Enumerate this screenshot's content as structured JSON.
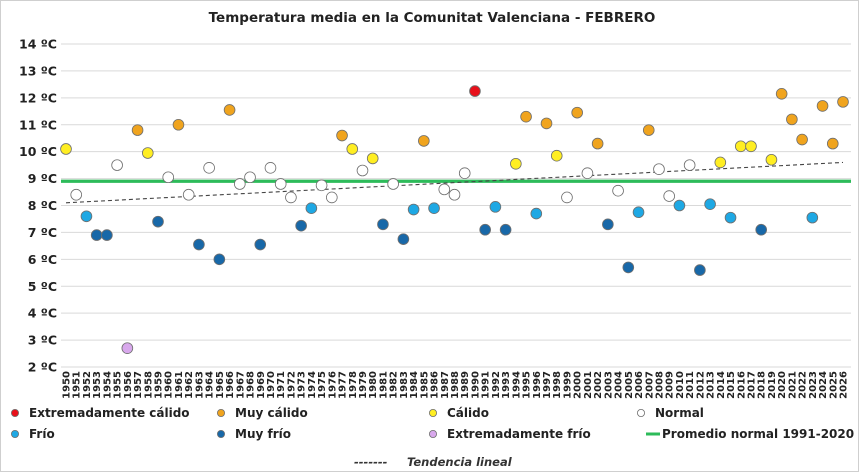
{
  "chart_data": {
    "type": "scatter",
    "title": "Temperatura media en la Comunitat Valenciana - FEBRERO",
    "y_unit": "ºC",
    "ylim": [
      2,
      14
    ],
    "y_ticks": [
      2,
      3,
      4,
      5,
      6,
      7,
      8,
      9,
      10,
      11,
      12,
      13,
      14
    ],
    "x_ticks": [
      1950,
      1951,
      1952,
      1953,
      1954,
      1955,
      1956,
      1957,
      1958,
      1959,
      1960,
      1961,
      1962,
      1963,
      1964,
      1965,
      1966,
      1967,
      1968,
      1969,
      1970,
      1971,
      1972,
      1973,
      1974,
      1975,
      1976,
      1977,
      1978,
      1979,
      1980,
      1981,
      1982,
      1983,
      1984,
      1985,
      1986,
      1987,
      1988,
      1989,
      1990,
      1991,
      1992,
      1993,
      1994,
      1995,
      1996,
      1997,
      1998,
      1999,
      2000,
      2001,
      2002,
      2003,
      2004,
      2005,
      2006,
      2007,
      2008,
      2009,
      2010,
      2011,
      2012,
      2013,
      2014,
      2015,
      2016,
      2017,
      2018,
      2019,
      2020,
      2021,
      2022,
      2023,
      2024,
      2025,
      2026
    ],
    "grid": "horizontal",
    "categories": {
      "ext_calido": {
        "label": "Extremadamente cálido",
        "color": "#e8101a"
      },
      "muy_calido": {
        "label": "Muy cálido",
        "color": "#f0a41e"
      },
      "calido": {
        "label": "Cálido",
        "color": "#ffee22"
      },
      "normal": {
        "label": "Normal",
        "color": "#ffffff"
      },
      "frio": {
        "label": "Frío",
        "color": "#1ea8e4"
      },
      "muy_frio": {
        "label": "Muy frío",
        "color": "#1868a8"
      },
      "ext_frio": {
        "label": "Extremadamente frío",
        "color": "#d8a8ec"
      }
    },
    "points": [
      {
        "year": 1950,
        "value": 10.1,
        "cat": "calido"
      },
      {
        "year": 1951,
        "value": 8.4,
        "cat": "normal"
      },
      {
        "year": 1952,
        "value": 7.6,
        "cat": "frio"
      },
      {
        "year": 1953,
        "value": 6.9,
        "cat": "muy_frio"
      },
      {
        "year": 1954,
        "value": 6.9,
        "cat": "muy_frio"
      },
      {
        "year": 1955,
        "value": 9.5,
        "cat": "normal"
      },
      {
        "year": 1956,
        "value": 2.7,
        "cat": "ext_frio"
      },
      {
        "year": 1957,
        "value": 10.8,
        "cat": "muy_calido"
      },
      {
        "year": 1958,
        "value": 9.95,
        "cat": "calido"
      },
      {
        "year": 1959,
        "value": 7.4,
        "cat": "muy_frio"
      },
      {
        "year": 1960,
        "value": 9.05,
        "cat": "normal"
      },
      {
        "year": 1961,
        "value": 11.0,
        "cat": "muy_calido"
      },
      {
        "year": 1962,
        "value": 8.4,
        "cat": "normal"
      },
      {
        "year": 1963,
        "value": 6.55,
        "cat": "muy_frio"
      },
      {
        "year": 1964,
        "value": 9.4,
        "cat": "normal"
      },
      {
        "year": 1965,
        "value": 6.0,
        "cat": "muy_frio"
      },
      {
        "year": 1966,
        "value": 11.55,
        "cat": "muy_calido"
      },
      {
        "year": 1967,
        "value": 8.8,
        "cat": "normal"
      },
      {
        "year": 1968,
        "value": 9.05,
        "cat": "normal"
      },
      {
        "year": 1969,
        "value": 6.55,
        "cat": "muy_frio"
      },
      {
        "year": 1970,
        "value": 9.4,
        "cat": "normal"
      },
      {
        "year": 1971,
        "value": 8.8,
        "cat": "normal"
      },
      {
        "year": 1972,
        "value": 8.3,
        "cat": "normal"
      },
      {
        "year": 1973,
        "value": 7.25,
        "cat": "muy_frio"
      },
      {
        "year": 1974,
        "value": 7.9,
        "cat": "frio"
      },
      {
        "year": 1975,
        "value": 8.75,
        "cat": "normal"
      },
      {
        "year": 1976,
        "value": 8.3,
        "cat": "normal"
      },
      {
        "year": 1977,
        "value": 10.6,
        "cat": "muy_calido"
      },
      {
        "year": 1978,
        "value": 10.1,
        "cat": "calido"
      },
      {
        "year": 1979,
        "value": 9.3,
        "cat": "normal"
      },
      {
        "year": 1980,
        "value": 9.75,
        "cat": "calido"
      },
      {
        "year": 1981,
        "value": 7.3,
        "cat": "muy_frio"
      },
      {
        "year": 1982,
        "value": 8.8,
        "cat": "normal"
      },
      {
        "year": 1983,
        "value": 6.75,
        "cat": "muy_frio"
      },
      {
        "year": 1984,
        "value": 7.85,
        "cat": "frio"
      },
      {
        "year": 1985,
        "value": 10.4,
        "cat": "muy_calido"
      },
      {
        "year": 1986,
        "value": 7.9,
        "cat": "frio"
      },
      {
        "year": 1987,
        "value": 8.6,
        "cat": "normal"
      },
      {
        "year": 1988,
        "value": 8.4,
        "cat": "normal"
      },
      {
        "year": 1989,
        "value": 9.2,
        "cat": "normal"
      },
      {
        "year": 1990,
        "value": 12.25,
        "cat": "ext_calido"
      },
      {
        "year": 1991,
        "value": 7.1,
        "cat": "muy_frio"
      },
      {
        "year": 1992,
        "value": 7.95,
        "cat": "frio"
      },
      {
        "year": 1993,
        "value": 7.1,
        "cat": "muy_frio"
      },
      {
        "year": 1994,
        "value": 9.55,
        "cat": "calido"
      },
      {
        "year": 1995,
        "value": 11.3,
        "cat": "muy_calido"
      },
      {
        "year": 1996,
        "value": 7.7,
        "cat": "frio"
      },
      {
        "year": 1997,
        "value": 11.05,
        "cat": "muy_calido"
      },
      {
        "year": 1998,
        "value": 9.85,
        "cat": "calido"
      },
      {
        "year": 1999,
        "value": 8.3,
        "cat": "normal"
      },
      {
        "year": 2000,
        "value": 11.45,
        "cat": "muy_calido"
      },
      {
        "year": 2001,
        "value": 9.2,
        "cat": "normal"
      },
      {
        "year": 2002,
        "value": 10.3,
        "cat": "muy_calido"
      },
      {
        "year": 2003,
        "value": 7.3,
        "cat": "muy_frio"
      },
      {
        "year": 2004,
        "value": 8.55,
        "cat": "normal"
      },
      {
        "year": 2005,
        "value": 5.7,
        "cat": "muy_frio"
      },
      {
        "year": 2006,
        "value": 7.75,
        "cat": "frio"
      },
      {
        "year": 2007,
        "value": 10.8,
        "cat": "muy_calido"
      },
      {
        "year": 2008,
        "value": 9.35,
        "cat": "normal"
      },
      {
        "year": 2009,
        "value": 8.35,
        "cat": "normal"
      },
      {
        "year": 2010,
        "value": 8.0,
        "cat": "frio"
      },
      {
        "year": 2011,
        "value": 9.5,
        "cat": "normal"
      },
      {
        "year": 2012,
        "value": 5.6,
        "cat": "muy_frio"
      },
      {
        "year": 2013,
        "value": 8.05,
        "cat": "frio"
      },
      {
        "year": 2014,
        "value": 9.6,
        "cat": "calido"
      },
      {
        "year": 2015,
        "value": 7.55,
        "cat": "frio"
      },
      {
        "year": 2016,
        "value": 10.2,
        "cat": "calido"
      },
      {
        "year": 2017,
        "value": 10.2,
        "cat": "calido"
      },
      {
        "year": 2018,
        "value": 7.1,
        "cat": "muy_frio"
      },
      {
        "year": 2019,
        "value": 9.7,
        "cat": "calido"
      },
      {
        "year": 2020,
        "value": 12.15,
        "cat": "muy_calido"
      },
      {
        "year": 2021,
        "value": 11.2,
        "cat": "muy_calido"
      },
      {
        "year": 2022,
        "value": 10.45,
        "cat": "muy_calido"
      },
      {
        "year": 2023,
        "value": 7.55,
        "cat": "frio"
      },
      {
        "year": 2024,
        "value": 11.7,
        "cat": "muy_calido"
      },
      {
        "year": 2025,
        "value": 10.3,
        "cat": "muy_calido"
      },
      {
        "year": 2026,
        "value": 11.85,
        "cat": "muy_calido"
      }
    ],
    "normal_line": {
      "label": "Promedio normal 1991-2020",
      "value": 8.9,
      "color": "#2dbb5a"
    },
    "trend": {
      "label": "Tendencia lineal",
      "legend_dash": "-------",
      "start": [
        1950,
        8.1
      ],
      "end": [
        2026,
        9.6
      ],
      "color": "#444444"
    },
    "legend_order": [
      "ext_calido",
      "muy_calido",
      "calido",
      "normal",
      "frio",
      "muy_frio",
      "ext_frio",
      "normal_line"
    ]
  }
}
